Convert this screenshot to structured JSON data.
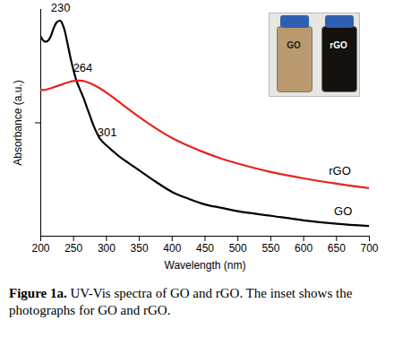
{
  "chart_data": {
    "type": "line",
    "x_label": "Wavelength (nm)",
    "y_label": "Absorbance (a.u.)",
    "x": [
      200,
      205,
      210,
      215,
      220,
      225,
      230,
      235,
      240,
      245,
      250,
      255,
      260,
      265,
      270,
      275,
      280,
      290,
      300,
      310,
      320,
      330,
      340,
      350,
      375,
      400,
      425,
      450,
      475,
      500,
      550,
      600,
      650,
      700
    ],
    "series": [
      {
        "name": "GO",
        "color": "#000000",
        "values": [
          0.88,
          0.86,
          0.86,
          0.88,
          0.92,
          0.945,
          0.95,
          0.92,
          0.86,
          0.79,
          0.73,
          0.68,
          0.645,
          0.61,
          0.57,
          0.53,
          0.49,
          0.43,
          0.4,
          0.375,
          0.35,
          0.33,
          0.31,
          0.29,
          0.24,
          0.195,
          0.165,
          0.14,
          0.125,
          0.11,
          0.09,
          0.07,
          0.055,
          0.045
        ]
      },
      {
        "name": "rGO",
        "color": "#e8221f",
        "values": [
          0.645,
          0.645,
          0.648,
          0.652,
          0.657,
          0.662,
          0.667,
          0.672,
          0.677,
          0.681,
          0.684,
          0.686,
          0.686,
          0.684,
          0.68,
          0.675,
          0.668,
          0.652,
          0.633,
          0.612,
          0.59,
          0.568,
          0.546,
          0.525,
          0.476,
          0.433,
          0.398,
          0.368,
          0.342,
          0.32,
          0.283,
          0.255,
          0.232,
          0.212
        ]
      }
    ],
    "xlim": [
      200,
      700
    ],
    "xticks": [
      200,
      250,
      300,
      350,
      400,
      450,
      500,
      550,
      600,
      650,
      700
    ],
    "ylim": [
      0,
      1
    ],
    "yticks": [
      0.5
    ],
    "tick_labels": "x",
    "annotations": [
      {
        "text": "230",
        "x": 230,
        "y": 0.95
      },
      {
        "text": "264",
        "x": 264,
        "y": 0.686
      },
      {
        "text": "301",
        "x": 301,
        "y": 0.4
      },
      {
        "text": "rGO",
        "x": 655,
        "y": 0.232
      },
      {
        "text": "GO",
        "x": 660,
        "y": 0.055
      }
    ],
    "caption": {
      "label": "Figure 1a.",
      "text": "UV-Vis spectra of GO and rGO. The inset shows the photographs for GO and rGO."
    }
  }
}
